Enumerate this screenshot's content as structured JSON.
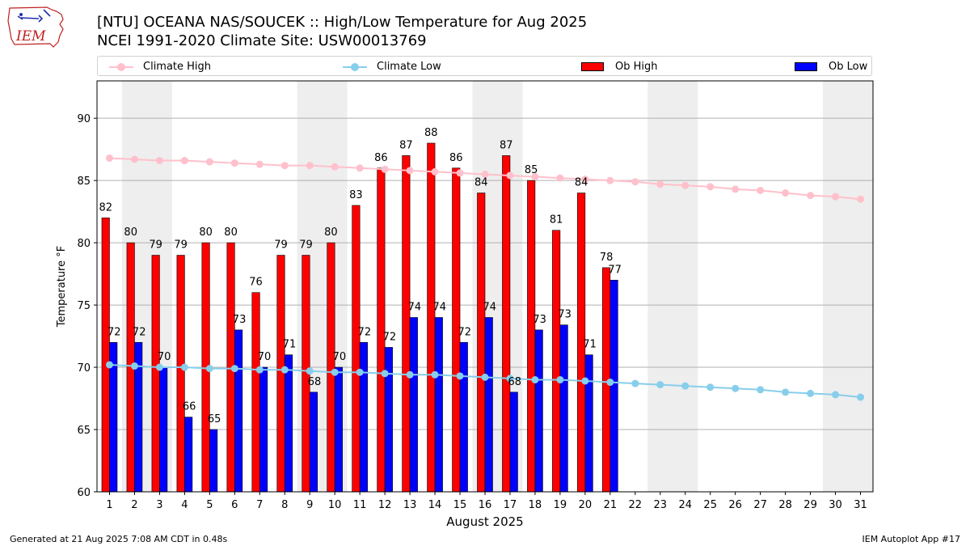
{
  "header": {
    "title_line1": "[NTU] OCEANA NAS/SOUCEK :: High/Low Temperature for Aug 2025",
    "title_line2": "NCEI 1991-2020 Climate Site: USW00013769"
  },
  "logo": {
    "text": "IEM"
  },
  "legend": {
    "climate_high": "Climate High",
    "climate_low": "Climate Low",
    "ob_high": "Ob High",
    "ob_low": "Ob Low"
  },
  "colors": {
    "ob_high": "#ff0000",
    "ob_low": "#0000ff",
    "climate_high": "#ffc0cb",
    "climate_low": "#87ceeb",
    "weekend_shade": "#eeeeee",
    "grid": "#b0b0b0"
  },
  "chart_data": {
    "type": "bar",
    "xlabel": "August 2025",
    "ylabel": "Temperature °F",
    "ylim": [
      60,
      93
    ],
    "yticks": [
      60,
      65,
      70,
      75,
      80,
      85,
      90
    ],
    "grid": "horizontal",
    "legend_position": "top",
    "days": [
      1,
      2,
      3,
      4,
      5,
      6,
      7,
      8,
      9,
      10,
      11,
      12,
      13,
      14,
      15,
      16,
      17,
      18,
      19,
      20,
      21,
      22,
      23,
      24,
      25,
      26,
      27,
      28,
      29,
      30,
      31
    ],
    "weekend_bands": [
      [
        2,
        3
      ],
      [
        9,
        10
      ],
      [
        16,
        17
      ],
      [
        23,
        24
      ],
      [
        30,
        31
      ]
    ],
    "series": [
      {
        "name": "Ob High",
        "kind": "bar",
        "values": [
          82,
          80,
          79,
          79,
          80,
          80,
          76,
          79,
          79,
          80,
          83,
          86,
          87,
          88,
          86,
          84,
          87,
          85,
          81,
          84,
          78
        ]
      },
      {
        "name": "Ob Low",
        "kind": "bar",
        "values": [
          72,
          72,
          70,
          66,
          65,
          73,
          70,
          71,
          68,
          70,
          72,
          71.6,
          74,
          74,
          72,
          74,
          68,
          73,
          73.4,
          71,
          77
        ],
        "labels": [
          "72",
          "72",
          "70",
          "66",
          "65",
          "73",
          "70",
          "71",
          "68",
          "70",
          "72",
          "72",
          "74",
          "74",
          "72",
          "74",
          "68",
          "73",
          "73",
          "71",
          "77"
        ]
      },
      {
        "name": "Climate High",
        "kind": "line",
        "values": [
          86.8,
          86.7,
          86.6,
          86.6,
          86.5,
          86.4,
          86.3,
          86.2,
          86.2,
          86.1,
          86.0,
          85.9,
          85.8,
          85.7,
          85.6,
          85.5,
          85.4,
          85.3,
          85.2,
          85.1,
          85.0,
          84.9,
          84.7,
          84.6,
          84.5,
          84.3,
          84.2,
          84.0,
          83.8,
          83.7,
          83.5
        ]
      },
      {
        "name": "Climate Low",
        "kind": "line",
        "values": [
          70.2,
          70.1,
          70.0,
          70.0,
          69.9,
          69.9,
          69.8,
          69.8,
          69.7,
          69.6,
          69.6,
          69.5,
          69.4,
          69.4,
          69.3,
          69.2,
          69.1,
          69.0,
          69.0,
          68.9,
          68.8,
          68.7,
          68.6,
          68.5,
          68.4,
          68.3,
          68.2,
          68.0,
          67.9,
          67.8,
          67.6
        ]
      }
    ]
  },
  "footer": {
    "left": "Generated at 21 Aug 2025 7:08 AM CDT in 0.48s",
    "right": "IEM Autoplot App #17"
  }
}
